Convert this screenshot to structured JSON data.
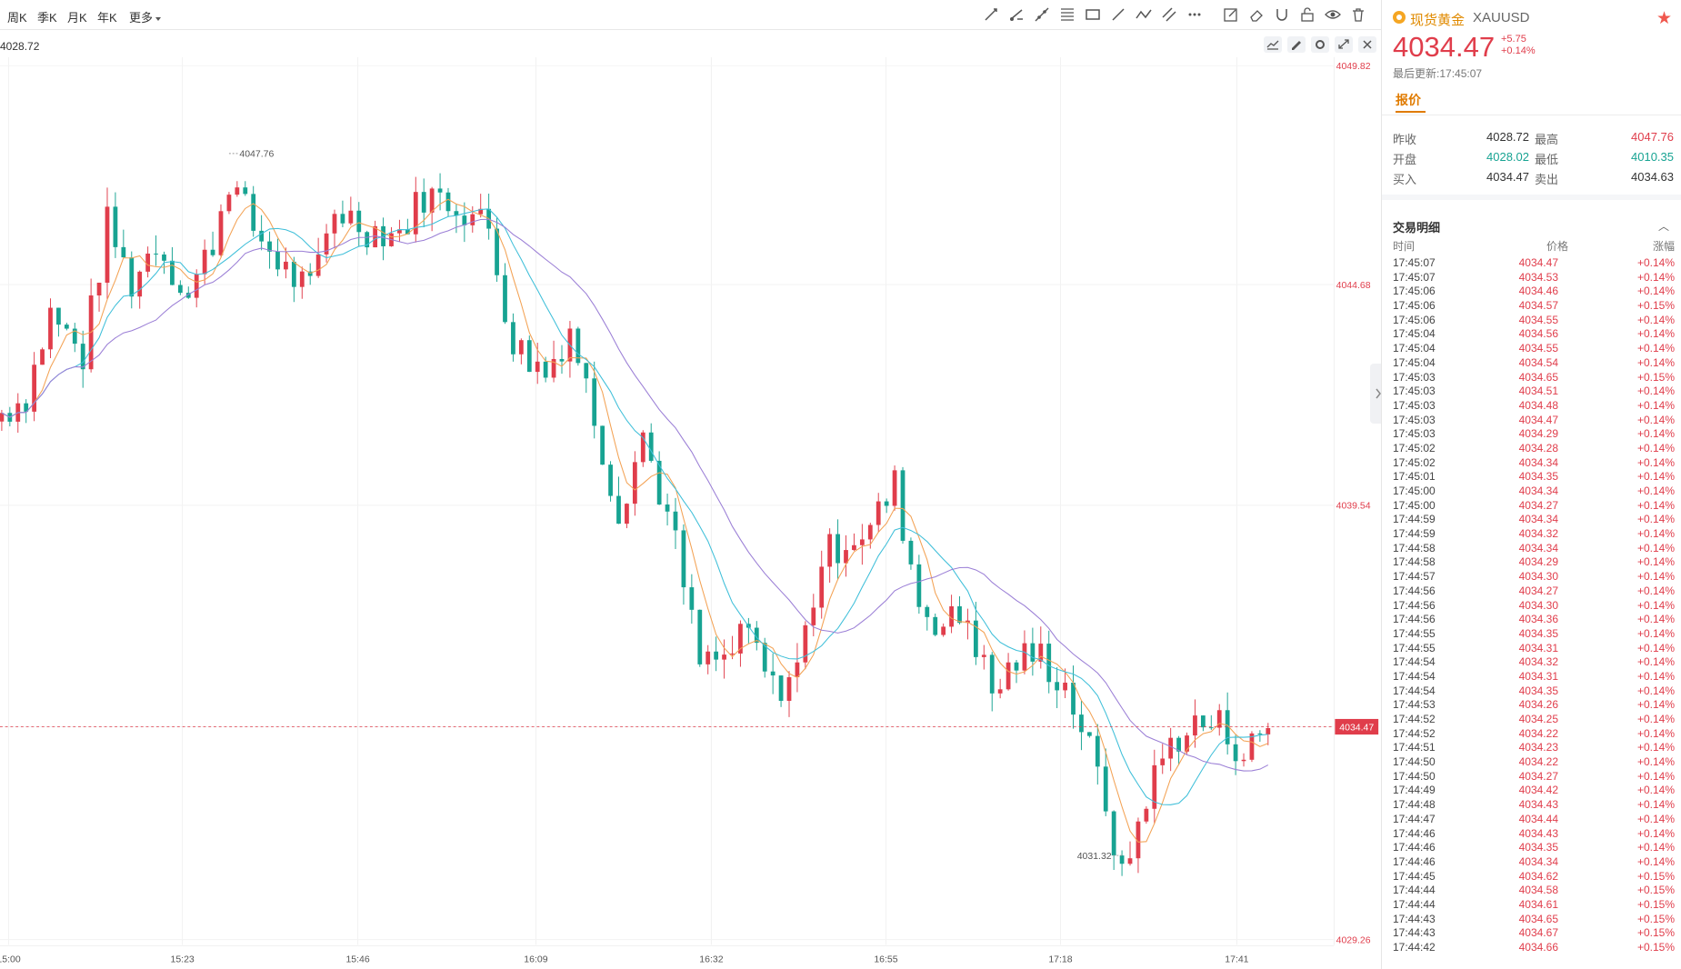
{
  "timeframes": [
    "周K",
    "季K",
    "月K",
    "年K",
    "更多"
  ],
  "chart_info": {
    "label": "4028.72"
  },
  "toolbar_icons": [
    "trend-line-icon",
    "ray-line-icon",
    "extended-line-icon",
    "fibonacci-icon",
    "rectangle-icon",
    "arrow-icon",
    "polyline-icon",
    "parallel-channel-icon",
    "more-tools-icon",
    "note-icon",
    "eraser-icon",
    "magnet-icon",
    "lock-icon",
    "eye-icon",
    "trash-icon"
  ],
  "chart_controls": [
    "indicator-icon",
    "edit-icon",
    "settings-icon",
    "expand-icon",
    "close-icon"
  ],
  "colors": {
    "up": "#e03d4b",
    "down": "#17a392",
    "ma5": "#f3a254",
    "ma10": "#3fbfd9",
    "ma20": "#9b7fd6",
    "accent": "#e07b00"
  },
  "chart_data": {
    "type": "candlestick",
    "symbol": "XAUUSD",
    "x_ticks": [
      "15:00",
      "15:23",
      "15:46",
      "16:09",
      "16:32",
      "16:55",
      "17:18",
      "17:41"
    ],
    "y_ticks": [
      "4049.82",
      "4044.68",
      "4039.54",
      "4034.47",
      "4029.26"
    ],
    "ylim": [
      4029.26,
      4049.82
    ],
    "last_price": "4034.47",
    "high_label": "4047.76",
    "low_label": "4031.32",
    "series": [
      "MA5",
      "MA10",
      "MA20"
    ],
    "close_path": [
      [
        0,
        4041.7
      ],
      [
        6,
        4042.1
      ],
      [
        12,
        4044.0
      ],
      [
        20,
        4043.0
      ],
      [
        26,
        4046.1
      ],
      [
        32,
        4044.7
      ],
      [
        38,
        4045.7
      ],
      [
        46,
        4044.4
      ],
      [
        52,
        4045.7
      ],
      [
        56,
        4047.2
      ],
      [
        62,
        4046.0
      ],
      [
        70,
        4045.0
      ],
      [
        76,
        4044.5
      ],
      [
        82,
        4046.5
      ],
      [
        90,
        4046.0
      ],
      [
        98,
        4045.9
      ],
      [
        104,
        4046.8
      ],
      [
        112,
        4046.6
      ],
      [
        120,
        4046.0
      ],
      [
        126,
        4043.3
      ],
      [
        134,
        4042.6
      ],
      [
        140,
        4043.7
      ],
      [
        146,
        4041.6
      ],
      [
        152,
        4039.4
      ],
      [
        158,
        4041.2
      ],
      [
        166,
        4038.6
      ],
      [
        172,
        4035.9
      ],
      [
        178,
        4036.0
      ],
      [
        184,
        4036.6
      ],
      [
        190,
        4035.3
      ],
      [
        196,
        4035.8
      ],
      [
        202,
        4038.3
      ],
      [
        208,
        4038.8
      ],
      [
        214,
        4039.0
      ],
      [
        220,
        4040.0
      ],
      [
        226,
        4037.3
      ],
      [
        232,
        4036.8
      ],
      [
        238,
        4037.0
      ],
      [
        244,
        4035.2
      ],
      [
        250,
        4036.0
      ],
      [
        256,
        4036.1
      ],
      [
        262,
        4035.4
      ],
      [
        266,
        4034.5
      ],
      [
        272,
        4032.6
      ],
      [
        276,
        4030.7
      ],
      [
        282,
        4032.8
      ],
      [
        288,
        4034.1
      ],
      [
        294,
        4034.5
      ],
      [
        300,
        4034.5
      ],
      [
        306,
        4033.8
      ],
      [
        312,
        4034.47
      ]
    ],
    "ohlc_extremes": {
      "high": "4047.76",
      "low": "4031.32"
    }
  },
  "quote": {
    "name": "现货黄金",
    "code": "XAUUSD",
    "price": "4034.47",
    "change": "+5.75",
    "change_pct": "+0.14%",
    "updated_label": "最后更新:",
    "updated_time": "17:45:07",
    "tab": "报价",
    "rows": [
      {
        "l1": "昨收",
        "v1": "4028.72",
        "l2": "最高",
        "v2": "4047.76"
      },
      {
        "l1": "开盘",
        "v1": "4028.02",
        "l2": "最低",
        "v2": "4010.35"
      },
      {
        "l1": "买入",
        "v1": "4034.47",
        "l2": "卖出",
        "v2": "4034.63"
      }
    ]
  },
  "ticks": {
    "title": "交易明细",
    "headers": [
      "时间",
      "价格",
      "涨幅"
    ],
    "rows": [
      [
        "17:45:07",
        "4034.47",
        "+0.14%"
      ],
      [
        "17:45:07",
        "4034.53",
        "+0.14%"
      ],
      [
        "17:45:06",
        "4034.46",
        "+0.14%"
      ],
      [
        "17:45:06",
        "4034.57",
        "+0.15%"
      ],
      [
        "17:45:06",
        "4034.55",
        "+0.14%"
      ],
      [
        "17:45:04",
        "4034.56",
        "+0.14%"
      ],
      [
        "17:45:04",
        "4034.55",
        "+0.14%"
      ],
      [
        "17:45:04",
        "4034.54",
        "+0.14%"
      ],
      [
        "17:45:03",
        "4034.65",
        "+0.15%"
      ],
      [
        "17:45:03",
        "4034.51",
        "+0.14%"
      ],
      [
        "17:45:03",
        "4034.48",
        "+0.14%"
      ],
      [
        "17:45:03",
        "4034.47",
        "+0.14%"
      ],
      [
        "17:45:03",
        "4034.29",
        "+0.14%"
      ],
      [
        "17:45:02",
        "4034.28",
        "+0.14%"
      ],
      [
        "17:45:02",
        "4034.34",
        "+0.14%"
      ],
      [
        "17:45:01",
        "4034.35",
        "+0.14%"
      ],
      [
        "17:45:00",
        "4034.34",
        "+0.14%"
      ],
      [
        "17:45:00",
        "4034.27",
        "+0.14%"
      ],
      [
        "17:44:59",
        "4034.34",
        "+0.14%"
      ],
      [
        "17:44:59",
        "4034.32",
        "+0.14%"
      ],
      [
        "17:44:58",
        "4034.34",
        "+0.14%"
      ],
      [
        "17:44:58",
        "4034.29",
        "+0.14%"
      ],
      [
        "17:44:57",
        "4034.30",
        "+0.14%"
      ],
      [
        "17:44:56",
        "4034.27",
        "+0.14%"
      ],
      [
        "17:44:56",
        "4034.30",
        "+0.14%"
      ],
      [
        "17:44:56",
        "4034.36",
        "+0.14%"
      ],
      [
        "17:44:55",
        "4034.35",
        "+0.14%"
      ],
      [
        "17:44:55",
        "4034.31",
        "+0.14%"
      ],
      [
        "17:44:54",
        "4034.32",
        "+0.14%"
      ],
      [
        "17:44:54",
        "4034.31",
        "+0.14%"
      ],
      [
        "17:44:54",
        "4034.35",
        "+0.14%"
      ],
      [
        "17:44:53",
        "4034.26",
        "+0.14%"
      ],
      [
        "17:44:52",
        "4034.25",
        "+0.14%"
      ],
      [
        "17:44:52",
        "4034.22",
        "+0.14%"
      ],
      [
        "17:44:51",
        "4034.23",
        "+0.14%"
      ],
      [
        "17:44:50",
        "4034.22",
        "+0.14%"
      ],
      [
        "17:44:50",
        "4034.27",
        "+0.14%"
      ],
      [
        "17:44:49",
        "4034.42",
        "+0.14%"
      ],
      [
        "17:44:48",
        "4034.43",
        "+0.14%"
      ],
      [
        "17:44:47",
        "4034.44",
        "+0.14%"
      ],
      [
        "17:44:46",
        "4034.43",
        "+0.14%"
      ],
      [
        "17:44:46",
        "4034.35",
        "+0.14%"
      ],
      [
        "17:44:46",
        "4034.34",
        "+0.14%"
      ],
      [
        "17:44:45",
        "4034.62",
        "+0.15%"
      ],
      [
        "17:44:44",
        "4034.58",
        "+0.15%"
      ],
      [
        "17:44:44",
        "4034.61",
        "+0.15%"
      ],
      [
        "17:44:43",
        "4034.65",
        "+0.15%"
      ],
      [
        "17:44:43",
        "4034.67",
        "+0.15%"
      ],
      [
        "17:44:42",
        "4034.66",
        "+0.15%"
      ]
    ]
  }
}
